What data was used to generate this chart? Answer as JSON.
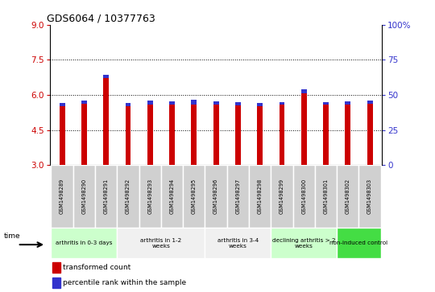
{
  "title": "GDS6064 / 10377763",
  "samples": [
    "GSM1498289",
    "GSM1498290",
    "GSM1498291",
    "GSM1498292",
    "GSM1498293",
    "GSM1498294",
    "GSM1498295",
    "GSM1498296",
    "GSM1498297",
    "GSM1498298",
    "GSM1498299",
    "GSM1498300",
    "GSM1498301",
    "GSM1498302",
    "GSM1498303"
  ],
  "red_values": [
    5.52,
    5.62,
    6.72,
    5.52,
    5.6,
    5.58,
    5.6,
    5.58,
    5.55,
    5.52,
    5.57,
    6.08,
    5.58,
    5.57,
    5.62
  ],
  "blue_values": [
    0.15,
    0.13,
    0.15,
    0.13,
    0.15,
    0.15,
    0.18,
    0.13,
    0.13,
    0.13,
    0.13,
    0.15,
    0.1,
    0.15,
    0.15
  ],
  "ylim_left": [
    3,
    9
  ],
  "ylim_right": [
    0,
    100
  ],
  "yticks_left": [
    3,
    4.5,
    6,
    7.5,
    9
  ],
  "yticks_right": [
    0,
    25,
    50,
    75,
    100
  ],
  "ytick_labels_right": [
    "0",
    "25",
    "50",
    "75",
    "100%"
  ],
  "bar_bottom": 3,
  "bar_width": 0.25,
  "red_color": "#cc0000",
  "blue_color": "#3333cc",
  "grid_yticks": [
    4.5,
    6.0,
    7.5
  ],
  "groups": [
    {
      "label": "arthritis in 0-3 days",
      "start": 0,
      "end": 3,
      "color": "#ccffcc"
    },
    {
      "label": "arthritis in 1-2\nweeks",
      "start": 3,
      "end": 7,
      "color": "#f0f0f0"
    },
    {
      "label": "arthritis in 3-4\nweeks",
      "start": 7,
      "end": 10,
      "color": "#f0f0f0"
    },
    {
      "label": "declining arthritis > 2\nweeks",
      "start": 10,
      "end": 13,
      "color": "#ccffcc"
    },
    {
      "label": "non-induced control",
      "start": 13,
      "end": 15,
      "color": "#44dd44"
    }
  ],
  "xlabel": "time",
  "bg_color": "#ffffff",
  "tick_color_left": "#cc0000",
  "tick_color_right": "#3333cc",
  "cell_color": "#d0d0d0",
  "cell_edge_color": "#ffffff"
}
